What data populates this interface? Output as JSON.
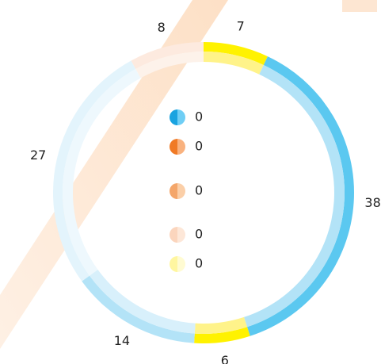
{
  "chart_data": {
    "type": "pie",
    "values": [
      7,
      38,
      6,
      14,
      27,
      8
    ],
    "colors": [
      "#fff200",
      "#5bc8f0",
      "#fff200",
      "#b3e3f7",
      "#e3f4fc",
      "#fdeadf"
    ],
    "inner_colors": [
      "#fff38a",
      "#b3e3f7",
      "#fff38a",
      "#d8f0fb",
      "#eef8fd",
      "#fdf2ea"
    ],
    "legend": [
      {
        "value": 0,
        "color": "#1aa3e0",
        "light": "#6fcef5"
      },
      {
        "value": 0,
        "color": "#f07a25",
        "light": "#f9b27f"
      },
      {
        "value": 0,
        "color": "#f4a66a",
        "light": "#fbcfa8"
      },
      {
        "value": 0,
        "color": "#fbd5bd",
        "light": "#fde7d8"
      },
      {
        "value": 0,
        "color": "#fff6a0",
        "light": "#fffbd2"
      }
    ]
  }
}
